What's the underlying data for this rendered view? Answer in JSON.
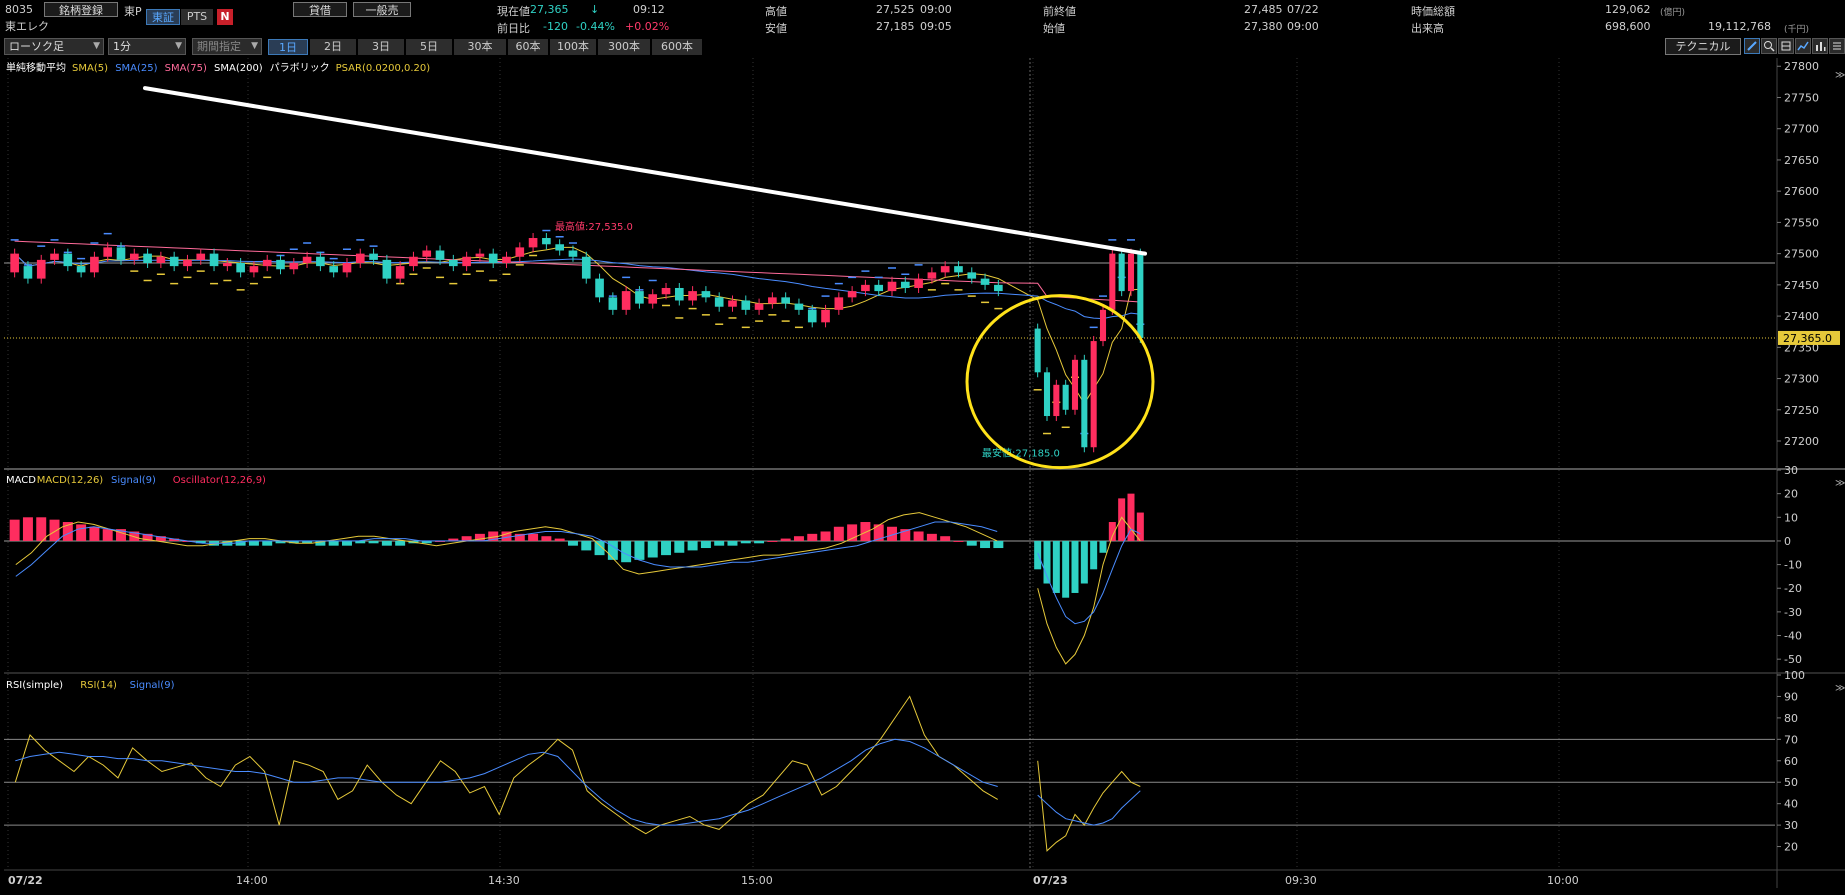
{
  "header": {
    "code": "8035",
    "name": "東エレク",
    "register_button": "銘柄登録",
    "market_label": "東P",
    "market_tabs": [
      "東証",
      "PTS"
    ],
    "news_icon": "N",
    "margin_button": "貸借",
    "general_button": "一般売",
    "quote": {
      "current_label": "現在値",
      "current_value": "27,365",
      "current_arrow": "↓",
      "current_time": "09:12",
      "change_label": "前日比",
      "change_value": "-120",
      "change_pct": "-0.44%",
      "change_extra": "+0.02%",
      "high_label": "高値",
      "high_value": "27,525",
      "high_time": "09:00",
      "low_label": "安値",
      "low_value": "27,185",
      "low_time": "09:05",
      "prev_label": "前終値",
      "prev_value": "27,485",
      "prev_date": "07/22",
      "open_label": "始値",
      "open_value": "27,380",
      "open_time": "09:00",
      "mcap_label": "時価総額",
      "mcap_value": "129,062",
      "mcap_unit": "(億円)",
      "volume_label": "出来高",
      "volume_value": "698,600",
      "turnover_value": "19,112,768",
      "turnover_unit": "(千円)"
    }
  },
  "toolbar": {
    "chart_type": "ローソク足",
    "interval": "1分",
    "period": "期間指定",
    "range_tabs": [
      "1日",
      "2日",
      "3日",
      "5日",
      "30本",
      "60本",
      "100本",
      "300本",
      "600本"
    ],
    "active_range": 0,
    "technical_button": "テクニカル",
    "tool_icons": [
      "pen-icon",
      "zoom-icon",
      "print-icon",
      "chart-icon",
      "chart2-icon",
      "list-icon"
    ]
  },
  "chart_data": [
    {
      "type": "candlestick",
      "panel": "price",
      "legend": [
        "単純移動平均",
        "SMA(5)",
        "SMA(25)",
        "SMA(75)",
        "SMA(200)",
        "パラボリック",
        "PSAR(0.0200,0.20)"
      ],
      "legend_colors": [
        "#ffffff",
        "#e6c93a",
        "#4a8cff",
        "#ff6b9a",
        "#ffffff",
        "#ffffff",
        "#e6c93a"
      ],
      "ylim": [
        27160,
        27810
      ],
      "y_ticks": [
        27800,
        27750,
        27700,
        27650,
        27600,
        27550,
        27500,
        27450,
        27400,
        27350,
        27300,
        27250,
        27200
      ],
      "current_price_label": "27,365.0",
      "current_price": 27365,
      "prev_close": 27485,
      "high_annotation": "最高値:27,535.0",
      "low_annotation": "最安値:27,185.0",
      "trendline": [
        [
          27765,
          0
        ],
        [
          27500,
          0.68
        ]
      ],
      "candles_day1": [
        [
          27470,
          27500
        ],
        [
          27480,
          27460
        ],
        [
          27460,
          27490
        ],
        [
          27490,
          27500
        ],
        [
          27500,
          27480
        ],
        [
          27480,
          27470
        ],
        [
          27470,
          27495
        ],
        [
          27495,
          27510
        ],
        [
          27510,
          27490
        ],
        [
          27490,
          27500
        ],
        [
          27500,
          27485
        ],
        [
          27485,
          27495
        ],
        [
          27495,
          27480
        ],
        [
          27480,
          27490
        ],
        [
          27490,
          27500
        ],
        [
          27500,
          27480
        ],
        [
          27480,
          27485
        ],
        [
          27485,
          27470
        ],
        [
          27470,
          27480
        ],
        [
          27480,
          27490
        ],
        [
          27490,
          27475
        ],
        [
          27475,
          27485
        ],
        [
          27485,
          27495
        ],
        [
          27495,
          27480
        ],
        [
          27480,
          27470
        ],
        [
          27470,
          27485
        ],
        [
          27485,
          27500
        ],
        [
          27500,
          27490
        ],
        [
          27490,
          27460
        ],
        [
          27460,
          27480
        ],
        [
          27480,
          27495
        ],
        [
          27495,
          27505
        ],
        [
          27505,
          27490
        ],
        [
          27490,
          27480
        ],
        [
          27480,
          27495
        ],
        [
          27495,
          27500
        ],
        [
          27500,
          27485
        ],
        [
          27485,
          27495
        ],
        [
          27495,
          27510
        ],
        [
          27510,
          27525
        ],
        [
          27525,
          27515
        ],
        [
          27515,
          27505
        ],
        [
          27505,
          27495
        ],
        [
          27495,
          27460
        ],
        [
          27460,
          27430
        ],
        [
          27430,
          27410
        ],
        [
          27410,
          27440
        ],
        [
          27440,
          27420
        ],
        [
          27420,
          27435
        ],
        [
          27435,
          27445
        ],
        [
          27445,
          27425
        ],
        [
          27425,
          27440
        ],
        [
          27440,
          27430
        ],
        [
          27430,
          27415
        ],
        [
          27415,
          27425
        ],
        [
          27425,
          27410
        ],
        [
          27410,
          27420
        ],
        [
          27420,
          27430
        ],
        [
          27430,
          27420
        ],
        [
          27420,
          27410
        ],
        [
          27410,
          27390
        ],
        [
          27390,
          27410
        ],
        [
          27410,
          27430
        ],
        [
          27430,
          27440
        ],
        [
          27440,
          27450
        ],
        [
          27450,
          27440
        ],
        [
          27440,
          27455
        ],
        [
          27455,
          27445
        ],
        [
          27445,
          27460
        ],
        [
          27460,
          27470
        ],
        [
          27470,
          27480
        ],
        [
          27480,
          27470
        ],
        [
          27470,
          27460
        ],
        [
          27460,
          27450
        ],
        [
          27450,
          27440
        ]
      ],
      "candles_day2": [
        [
          27380,
          27310
        ],
        [
          27310,
          27240
        ],
        [
          27240,
          27290
        ],
        [
          27290,
          27250
        ],
        [
          27250,
          27330
        ],
        [
          27330,
          27190
        ],
        [
          27190,
          27360
        ],
        [
          27360,
          27410
        ],
        [
          27410,
          27500
        ],
        [
          27500,
          27440
        ],
        [
          27440,
          27500
        ],
        [
          27500,
          27365
        ]
      ],
      "session_break_label": "07/22",
      "day2_label": "07/23",
      "x_ticks": [
        "07/22",
        "14:00",
        "14:30",
        "15:00",
        "07/23",
        "09:30",
        "10:00"
      ]
    },
    {
      "type": "bar",
      "panel": "macd",
      "legend": [
        "MACD",
        "MACD(12,26)",
        "Signal(9)",
        "Oscillator(12,26,9)"
      ],
      "legend_colors": [
        "#ffffff",
        "#e6c93a",
        "#4a8cff",
        "#ff2d5f"
      ],
      "ylim": [
        -55,
        30
      ],
      "y_ticks": [
        30,
        20,
        10,
        0,
        -10,
        -20,
        -30,
        -40,
        -50
      ],
      "osc_day1": [
        9,
        10,
        10,
        9,
        8,
        7,
        6,
        5,
        5,
        4,
        3,
        2,
        1,
        0,
        -1,
        -2,
        -2,
        -2,
        -2,
        -2,
        -1,
        -1,
        -1,
        -2,
        -2,
        -2,
        -1,
        -1,
        -2,
        -2,
        -1,
        -1,
        0,
        1,
        2,
        3,
        4,
        4,
        3,
        3,
        2,
        1,
        -2,
        -4,
        -6,
        -8,
        -9,
        -8,
        -7,
        -6,
        -5,
        -4,
        -3,
        -2,
        -2,
        -1,
        -1,
        0,
        1,
        2,
        3,
        4,
        6,
        7,
        8,
        7,
        6,
        5,
        4,
        3,
        2,
        0,
        -2,
        -3,
        -3
      ],
      "osc_day2": [
        -12,
        -18,
        -22,
        -24,
        -22,
        -18,
        -12,
        -5,
        8,
        18,
        20,
        12
      ],
      "macd_day1": [
        -10,
        -5,
        2,
        6,
        8,
        7,
        5,
        3,
        1,
        0,
        -1,
        -2,
        -2,
        -1,
        0,
        1,
        1,
        0,
        -1,
        -1,
        0,
        1,
        2,
        2,
        1,
        0,
        -1,
        -2,
        -1,
        0,
        1,
        2,
        4,
        5,
        6,
        5,
        3,
        1,
        -5,
        -12,
        -14,
        -13,
        -12,
        -11,
        -10,
        -9,
        -8,
        -7,
        -6,
        -6,
        -5,
        -4,
        -3,
        -1,
        2,
        5,
        9,
        11,
        12,
        10,
        8,
        6,
        3,
        0
      ],
      "macd_day2": [
        -20,
        -35,
        -45,
        -52,
        -48,
        -40,
        -28,
        -10,
        2,
        10,
        5,
        0
      ],
      "signal_day1": [
        -15,
        -10,
        -4,
        2,
        5,
        6,
        5,
        4,
        3,
        2,
        1,
        0,
        -1,
        -1,
        -1,
        0,
        0,
        0,
        0,
        0,
        0,
        0,
        0,
        1,
        1,
        1,
        0,
        0,
        0,
        0,
        0,
        1,
        2,
        3,
        4,
        4,
        3,
        2,
        -1,
        -5,
        -8,
        -10,
        -11,
        -11,
        -11,
        -10,
        -9,
        -9,
        -8,
        -7,
        -6,
        -5,
        -4,
        -3,
        -2,
        0,
        2,
        4,
        6,
        8,
        8,
        7,
        6,
        4
      ],
      "signal_day2": [
        -5,
        -15,
        -24,
        -32,
        -35,
        -34,
        -30,
        -22,
        -12,
        -2,
        5,
        3
      ]
    },
    {
      "type": "line",
      "panel": "rsi",
      "legend": [
        "RSI(simple)",
        "RSI(14)",
        "Signal(9)"
      ],
      "legend_colors": [
        "#ffffff",
        "#e6c93a",
        "#4a8cff"
      ],
      "ylim": [
        10,
        100
      ],
      "y_ticks": [
        100,
        90,
        80,
        70,
        60,
        50,
        40,
        30,
        20
      ],
      "levels": [
        70,
        50,
        30
      ],
      "rsi_day1": [
        50,
        72,
        65,
        60,
        55,
        62,
        58,
        52,
        66,
        60,
        55,
        57,
        59,
        52,
        48,
        58,
        62,
        55,
        30,
        60,
        58,
        55,
        42,
        46,
        58,
        50,
        44,
        40,
        50,
        60,
        55,
        45,
        48,
        35,
        52,
        58,
        63,
        70,
        65,
        46,
        40,
        35,
        30,
        26,
        30,
        32,
        34,
        30,
        28,
        34,
        40,
        44,
        52,
        60,
        58,
        44,
        48,
        55,
        62,
        70,
        80,
        90,
        72,
        62,
        58,
        52,
        46,
        42
      ],
      "rsi_day2": [
        60,
        18,
        22,
        25,
        35,
        30,
        38,
        45,
        50,
        55,
        50,
        48
      ],
      "signal_day1": [
        60,
        62,
        63,
        64,
        63,
        62,
        62,
        61,
        61,
        60,
        60,
        59,
        58,
        57,
        56,
        55,
        55,
        54,
        52,
        50,
        50,
        51,
        52,
        52,
        51,
        50,
        50,
        50,
        50,
        50,
        51,
        52,
        54,
        57,
        60,
        63,
        64,
        62,
        55,
        48,
        42,
        37,
        33,
        31,
        30,
        30,
        31,
        32,
        33,
        35,
        37,
        40,
        43,
        46,
        49,
        52,
        56,
        60,
        65,
        68,
        70,
        69,
        66,
        62,
        58,
        54,
        50,
        48
      ],
      "signal_day2": [
        44,
        40,
        36,
        33,
        32,
        31,
        30,
        31,
        33,
        38,
        42,
        46
      ]
    }
  ]
}
